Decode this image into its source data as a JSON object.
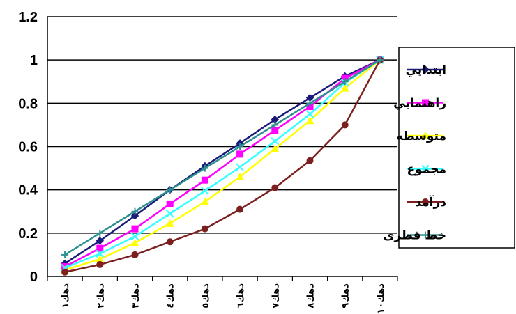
{
  "chart_data": {
    "type": "line",
    "title": "",
    "xlabel": "",
    "ylabel": "",
    "ylim": [
      0,
      1.2
    ],
    "yticks": [
      "0",
      "0.2",
      "0.4",
      "0.6",
      "0.8",
      "1",
      "1.2"
    ],
    "categories": [
      "ﺩﻫﻚ۱",
      "ﺩﻫﻚ۲",
      "ﺩﻫﻚ۳",
      "ﺩﻫﻚ٤",
      "ﺩﻫﻚ٥",
      "ﺩﻫﻚ٦",
      "ﺩﻫﻚ۷",
      "ﺩﻫﻚ۸",
      "ﺩﻫﻚ۹",
      "ﺩﻫﻚ۱۰"
    ],
    "grid": true,
    "legend_position": "right",
    "series": [
      {
        "name": "ابتدايي",
        "color": "#1a1a7a",
        "marker": "diamond",
        "values": [
          0.06,
          0.165,
          0.28,
          0.4,
          0.51,
          0.615,
          0.725,
          0.825,
          0.925,
          1.0
        ]
      },
      {
        "name": "راهنمايي",
        "color": "#ff00ff",
        "marker": "square",
        "values": [
          0.045,
          0.13,
          0.22,
          0.335,
          0.445,
          0.565,
          0.675,
          0.785,
          0.915,
          1.0
        ]
      },
      {
        "name": "متوسطه",
        "color": "#ffff00",
        "marker": "triangle",
        "values": [
          0.03,
          0.08,
          0.155,
          0.245,
          0.345,
          0.46,
          0.59,
          0.72,
          0.87,
          1.0
        ]
      },
      {
        "name": "مجموع",
        "color": "#33ffff",
        "marker": "x",
        "values": [
          0.04,
          0.105,
          0.185,
          0.29,
          0.395,
          0.505,
          0.625,
          0.75,
          0.895,
          1.0
        ]
      },
      {
        "name": "درآمد",
        "color": "#7b1f1f",
        "marker": "circle",
        "values": [
          0.02,
          0.055,
          0.1,
          0.16,
          0.22,
          0.31,
          0.41,
          0.535,
          0.7,
          1.0
        ]
      },
      {
        "name": "خط قطری",
        "color": "#2f8f8f",
        "marker": "plus",
        "values": [
          0.1,
          0.2,
          0.3,
          0.4,
          0.5,
          0.6,
          0.7,
          0.8,
          0.9,
          1.0
        ]
      }
    ]
  }
}
